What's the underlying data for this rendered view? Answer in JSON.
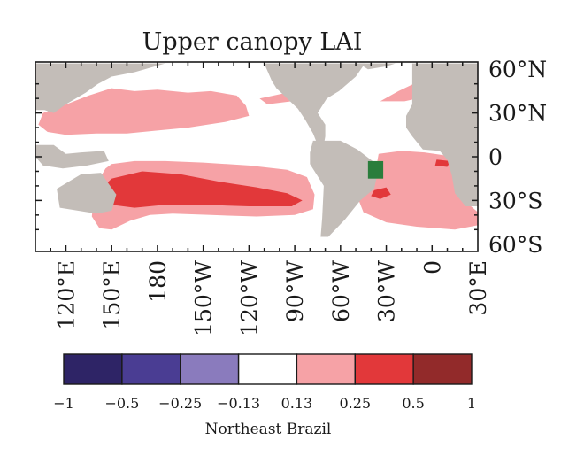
{
  "chart_data": {
    "type": "heatmap",
    "title": "Upper canopy LAI",
    "xlabel": "",
    "ylabel": "",
    "x_range": [
      100,
      390
    ],
    "y_range": [
      -65,
      65
    ],
    "x_ticks": [
      {
        "value": 120,
        "label": "120°E"
      },
      {
        "value": 150,
        "label": "150°E"
      },
      {
        "value": 180,
        "label": "180"
      },
      {
        "value": 210,
        "label": "150°W"
      },
      {
        "value": 240,
        "label": "120°W"
      },
      {
        "value": 270,
        "label": "90°W"
      },
      {
        "value": 300,
        "label": "60°W"
      },
      {
        "value": 330,
        "label": "30°W"
      },
      {
        "value": 360,
        "label": "0"
      },
      {
        "value": 390,
        "label": "30°E"
      }
    ],
    "y_ticks": [
      {
        "value": 60,
        "label": "60°N"
      },
      {
        "value": 30,
        "label": "30°N"
      },
      {
        "value": 0,
        "label": "0"
      },
      {
        "value": -30,
        "label": "30°S"
      },
      {
        "value": -60,
        "label": "60°S"
      }
    ],
    "colorbar": {
      "boundaries": [
        "−1",
        "−0.5",
        "−0.25",
        "−0.13",
        "0.13",
        "0.25",
        "0.5",
        "1"
      ],
      "colors": [
        "#2e2466",
        "#4a3d93",
        "#8a7bbd",
        "#ffffff",
        "#f6a2a6",
        "#e2383a",
        "#922a2a"
      ],
      "label": "Northeast Brazil"
    },
    "region_box": {
      "lon": [
        318,
        328
      ],
      "lat": [
        -15,
        -3
      ],
      "color": "#2a7d3c"
    },
    "land_color": "#c3bdb8",
    "regions": [
      {
        "level": 0.13,
        "polygon": [
          [
            105,
            30
          ],
          [
            118,
            35
          ],
          [
            135,
            42
          ],
          [
            150,
            47
          ],
          [
            165,
            45
          ],
          [
            180,
            46
          ],
          [
            200,
            44
          ],
          [
            215,
            45
          ],
          [
            232,
            42
          ],
          [
            238,
            35
          ],
          [
            240,
            28
          ],
          [
            225,
            24
          ],
          [
            200,
            20
          ],
          [
            180,
            18
          ],
          [
            160,
            16
          ],
          [
            140,
            16
          ],
          [
            120,
            15
          ],
          [
            108,
            17
          ],
          [
            102,
            22
          ]
        ]
      },
      {
        "level": 0.13,
        "polygon": [
          [
            150,
            -5
          ],
          [
            165,
            -3
          ],
          [
            185,
            -3
          ],
          [
            210,
            -4
          ],
          [
            240,
            -6
          ],
          [
            265,
            -9
          ],
          [
            278,
            -14
          ],
          [
            283,
            -26
          ],
          [
            282,
            -36
          ],
          [
            270,
            -40
          ],
          [
            245,
            -41
          ],
          [
            215,
            -40
          ],
          [
            190,
            -39
          ],
          [
            175,
            -40
          ],
          [
            162,
            -44
          ],
          [
            150,
            -50
          ],
          [
            142,
            -49
          ],
          [
            137,
            -41
          ],
          [
            138,
            -30
          ],
          [
            142,
            -15
          ],
          [
            146,
            -8
          ]
        ]
      },
      {
        "level": 0.13,
        "polygon": [
          [
            247,
            40
          ],
          [
            265,
            44
          ],
          [
            282,
            46
          ],
          [
            290,
            44
          ],
          [
            285,
            40
          ],
          [
            268,
            38
          ],
          [
            252,
            36
          ]
        ]
      },
      {
        "level": 0.13,
        "polygon": [
          [
            326,
            38
          ],
          [
            338,
            45
          ],
          [
            352,
            52
          ],
          [
            360,
            47
          ],
          [
            355,
            41
          ],
          [
            342,
            38
          ]
        ]
      },
      {
        "level": 0.13,
        "polygon": [
          [
            325,
            2
          ],
          [
            340,
            4
          ],
          [
            355,
            3
          ],
          [
            368,
            1
          ],
          [
            379,
            -4
          ],
          [
            380,
            -12
          ],
          [
            376,
            -22
          ],
          [
            381,
            -30
          ],
          [
            390,
            -38
          ],
          [
            390,
            -47
          ],
          [
            375,
            -50
          ],
          [
            350,
            -48
          ],
          [
            330,
            -45
          ],
          [
            315,
            -38
          ],
          [
            312,
            -30
          ],
          [
            318,
            -22
          ],
          [
            322,
            -15
          ]
        ]
      },
      {
        "level": 0.25,
        "polygon": [
          [
            150,
            -15
          ],
          [
            170,
            -10
          ],
          [
            195,
            -12
          ],
          [
            220,
            -17
          ],
          [
            245,
            -21
          ],
          [
            265,
            -25
          ],
          [
            275,
            -30
          ],
          [
            268,
            -34
          ],
          [
            240,
            -34
          ],
          [
            210,
            -33
          ],
          [
            185,
            -33
          ],
          [
            165,
            -35
          ],
          [
            150,
            -33
          ],
          [
            144,
            -26
          ],
          [
            146,
            -19
          ]
        ]
      },
      {
        "level": 0.25,
        "polygon": [
          [
            322,
            -23
          ],
          [
            330,
            -21
          ],
          [
            333,
            -26
          ],
          [
            326,
            -29
          ],
          [
            320,
            -27
          ]
        ]
      },
      {
        "level": 0.25,
        "polygon": [
          [
            363,
            -2
          ],
          [
            372,
            -3
          ],
          [
            370,
            -7
          ],
          [
            362,
            -6
          ]
        ]
      }
    ],
    "land": [
      {
        "name": "North America",
        "polygon": [
          [
            250,
            64
          ],
          [
            255,
            52
          ],
          [
            258,
            47
          ],
          [
            265,
            40
          ],
          [
            272,
            33
          ],
          [
            277,
            25
          ],
          [
            282,
            16
          ],
          [
            285,
            8
          ],
          [
            289,
            8
          ],
          [
            290,
            14
          ],
          [
            290,
            22
          ],
          [
            285,
            30
          ],
          [
            291,
            40
          ],
          [
            299,
            45
          ],
          [
            310,
            55
          ],
          [
            316,
            64
          ]
        ]
      },
      {
        "name": "Asia",
        "polygon": [
          [
            100,
            64
          ],
          [
            100,
            32
          ],
          [
            106,
            32
          ],
          [
            112,
            30
          ],
          [
            120,
            36
          ],
          [
            133,
            44
          ],
          [
            141,
            50
          ],
          [
            150,
            55
          ],
          [
            165,
            58
          ],
          [
            185,
            64
          ]
        ]
      },
      {
        "name": "Southeast Asia",
        "polygon": [
          [
            100,
            8
          ],
          [
            112,
            8
          ],
          [
            120,
            2
          ],
          [
            130,
            3
          ],
          [
            145,
            4
          ],
          [
            148,
            -3
          ],
          [
            134,
            -6
          ],
          [
            118,
            -8
          ],
          [
            105,
            -6
          ],
          [
            100,
            0
          ]
        ]
      },
      {
        "name": "Australia",
        "polygon": [
          [
            114,
            -22
          ],
          [
            130,
            -12
          ],
          [
            143,
            -11
          ],
          [
            153,
            -26
          ],
          [
            150,
            -37
          ],
          [
            140,
            -39
          ],
          [
            116,
            -35
          ]
        ]
      },
      {
        "name": "South America",
        "polygon": [
          [
            282,
            11
          ],
          [
            300,
            11
          ],
          [
            311,
            5
          ],
          [
            321,
            -3
          ],
          [
            325,
            -8
          ],
          [
            322,
            -22
          ],
          [
            313,
            -30
          ],
          [
            303,
            -43
          ],
          [
            292,
            -55
          ],
          [
            287,
            -55
          ],
          [
            288,
            -42
          ],
          [
            289,
            -20
          ],
          [
            280,
            -5
          ],
          [
            280,
            3
          ]
        ]
      },
      {
        "name": "Africa and Europe",
        "polygon": [
          [
            347,
            64
          ],
          [
            347,
            36
          ],
          [
            343,
            28
          ],
          [
            343,
            20
          ],
          [
            347,
            14
          ],
          [
            354,
            5
          ],
          [
            365,
            4
          ],
          [
            370,
            -2
          ],
          [
            373,
            -13
          ],
          [
            375,
            -25
          ],
          [
            382,
            -34
          ],
          [
            390,
            -34
          ],
          [
            390,
            64
          ]
        ]
      },
      {
        "name": "Greenland",
        "polygon": [
          [
            312,
            64
          ],
          [
            318,
            60
          ],
          [
            330,
            62
          ],
          [
            336,
            64
          ]
        ]
      }
    ]
  }
}
